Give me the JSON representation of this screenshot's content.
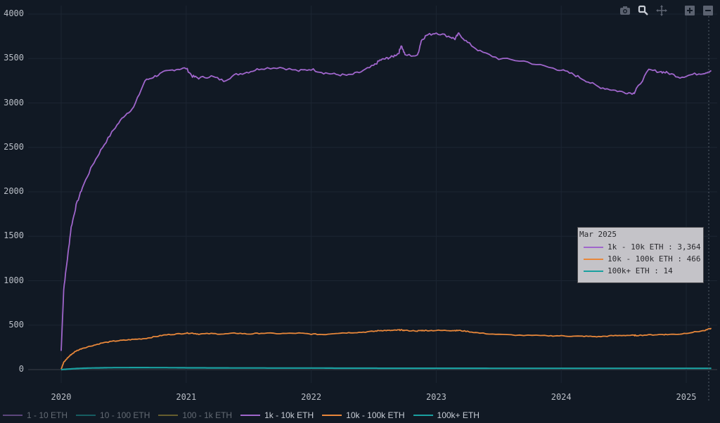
{
  "toolbar": {
    "buttons": [
      {
        "name": "camera-icon",
        "label": "Download plot as png"
      },
      {
        "name": "zoom-icon",
        "label": "Zoom"
      },
      {
        "name": "pan-icon",
        "label": "Pan"
      },
      {
        "name": "zoom-in-icon",
        "label": "Zoom in"
      },
      {
        "name": "zoom-out-icon",
        "label": "Zoom out"
      }
    ]
  },
  "colors": {
    "background": "#111924",
    "grid": "#1c2532",
    "tick_text": "#b9bec6",
    "series_1_10": "#8e65b8",
    "series_10_100": "#1a8a8a",
    "series_100_1k": "#a08a35",
    "series_1k_10k": "#a066cc",
    "series_10k_100k": "#e8873a",
    "series_100k": "#1aa0a0"
  },
  "hover": {
    "title": "Mar 2025",
    "rows": [
      {
        "label": "1k - 10k ETH : 3,364",
        "color": "#a066cc"
      },
      {
        "label": "10k - 100k ETH : 466",
        "color": "#e8873a"
      },
      {
        "label": "100k+ ETH : 14",
        "color": "#1aa0a0"
      }
    ]
  },
  "legend": [
    {
      "label": "1 - 10 ETH",
      "color": "#8e65b8",
      "active": false
    },
    {
      "label": "10 - 100 ETH",
      "color": "#1a8a8a",
      "active": false
    },
    {
      "label": "100 - 1k ETH",
      "color": "#a08a35",
      "active": false
    },
    {
      "label": "1k - 10k ETH",
      "color": "#a066cc",
      "active": true
    },
    {
      "label": "10k - 100k ETH",
      "color": "#e8873a",
      "active": true
    },
    {
      "label": "100k+ ETH",
      "color": "#1aa0a0",
      "active": true
    }
  ],
  "chart_data": {
    "type": "line",
    "title": "",
    "xlabel": "",
    "ylabel": "",
    "ylim": [
      0,
      4000
    ],
    "xlim": [
      "2019-12",
      "2025-03"
    ],
    "grid": true,
    "legend_position": "bottom",
    "y_ticks": [
      "0",
      "500",
      "1000",
      "1500",
      "2000",
      "2500",
      "3000",
      "3500",
      "4000"
    ],
    "x_ticks": [
      "2020",
      "2021",
      "2022",
      "2023",
      "2024",
      "2025"
    ],
    "x": [
      2020.0,
      2020.02,
      2020.05,
      2020.08,
      2020.12,
      2020.17,
      2020.25,
      2020.33,
      2020.42,
      2020.5,
      2020.58,
      2020.67,
      2020.75,
      2020.83,
      2020.92,
      2021.0,
      2021.05,
      2021.1,
      2021.2,
      2021.3,
      2021.4,
      2021.5,
      2021.6,
      2021.75,
      2021.9,
      2022.0,
      2022.1,
      2022.2,
      2022.3,
      2022.4,
      2022.5,
      2022.55,
      2022.6,
      2022.65,
      2022.7,
      2022.72,
      2022.75,
      2022.85,
      2022.88,
      2022.92,
      2023.0,
      2023.1,
      2023.15,
      2023.18,
      2023.25,
      2023.35,
      2023.5,
      2023.7,
      2023.9,
      2024.0,
      2024.1,
      2024.2,
      2024.3,
      2024.4,
      2024.5,
      2024.58,
      2024.6,
      2024.7,
      2024.8,
      2024.85,
      2024.95,
      2025.05,
      2025.15,
      2025.2
    ],
    "series": [
      {
        "name": "1k - 10k ETH",
        "color": "#a066cc",
        "values": [
          210,
          900,
          1250,
          1600,
          1850,
          2050,
          2300,
          2500,
          2700,
          2850,
          2950,
          3250,
          3300,
          3350,
          3380,
          3390,
          3300,
          3280,
          3300,
          3250,
          3320,
          3350,
          3390,
          3400,
          3360,
          3380,
          3340,
          3320,
          3310,
          3350,
          3420,
          3480,
          3500,
          3520,
          3560,
          3650,
          3540,
          3530,
          3700,
          3760,
          3790,
          3750,
          3720,
          3780,
          3680,
          3580,
          3500,
          3470,
          3400,
          3370,
          3320,
          3250,
          3180,
          3150,
          3120,
          3110,
          3150,
          3370,
          3350,
          3340,
          3290,
          3320,
          3340,
          3364
        ]
      },
      {
        "name": "10k - 100k ETH",
        "color": "#e8873a",
        "values": [
          5,
          80,
          130,
          170,
          210,
          240,
          270,
          300,
          320,
          330,
          340,
          350,
          370,
          390,
          400,
          410,
          410,
          400,
          405,
          400,
          410,
          400,
          410,
          405,
          410,
          400,
          395,
          410,
          415,
          420,
          430,
          440,
          440,
          440,
          445,
          445,
          440,
          435,
          440,
          440,
          440,
          440,
          440,
          440,
          430,
          410,
          395,
          385,
          380,
          380,
          375,
          375,
          370,
          380,
          385,
          385,
          385,
          390,
          395,
          395,
          400,
          420,
          440,
          466
        ]
      },
      {
        "name": "100k+ ETH",
        "color": "#1aa0a0",
        "values": [
          0,
          2,
          5,
          8,
          12,
          15,
          18,
          20,
          22,
          22,
          23,
          23,
          22,
          22,
          21,
          20,
          20,
          20,
          19,
          19,
          18,
          18,
          18,
          17,
          17,
          17,
          17,
          16,
          16,
          16,
          16,
          15,
          15,
          15,
          15,
          15,
          15,
          15,
          15,
          15,
          15,
          15,
          15,
          15,
          15,
          15,
          14,
          14,
          14,
          14,
          14,
          14,
          14,
          14,
          14,
          14,
          14,
          14,
          14,
          14,
          14,
          14,
          14,
          14
        ]
      },
      {
        "name": "1 - 10 ETH",
        "color": "#8e65b8",
        "values": [],
        "hidden": true
      },
      {
        "name": "10 - 100 ETH",
        "color": "#1a8a8a",
        "values": [],
        "hidden": true
      },
      {
        "name": "100 - 1k ETH",
        "color": "#a08a35",
        "values": [],
        "hidden": true
      }
    ]
  }
}
